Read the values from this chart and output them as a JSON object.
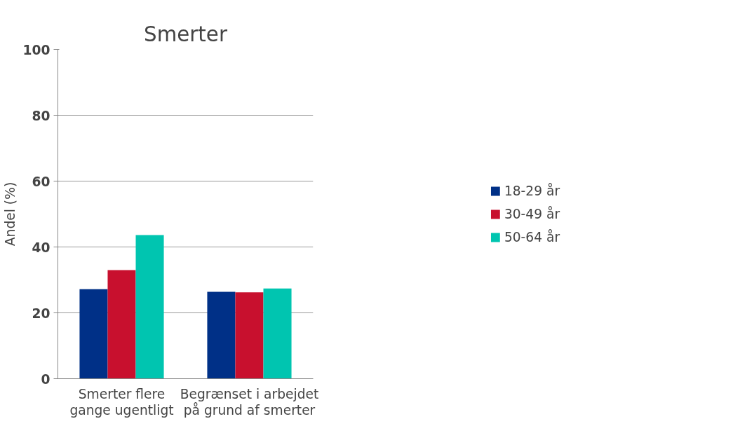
{
  "chart_data": {
    "type": "bar",
    "title": "Smerter",
    "ylabel": "Andel (%)",
    "categories": [
      "Smerter flere\ngange ugentligt",
      "Begrænset i arbejdet\npå grund af smerter"
    ],
    "series": [
      {
        "name": "18-29 år",
        "color": "#003087",
        "values": [
          27.2,
          26.4
        ]
      },
      {
        "name": "30-49 år",
        "color": "#c8102e",
        "values": [
          33.0,
          26.2
        ]
      },
      {
        "name": "50-64 år",
        "color": "#00c5b0",
        "values": [
          43.6,
          27.4
        ]
      }
    ],
    "ylim": [
      0,
      100
    ],
    "yticks": [
      0,
      20,
      40,
      60,
      80,
      100
    ],
    "grid": "y",
    "legend": "right"
  }
}
